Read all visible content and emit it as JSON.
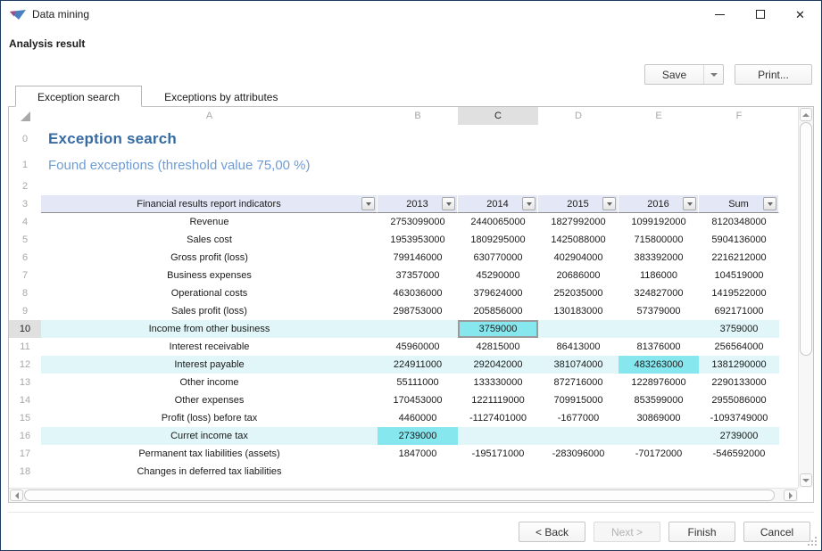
{
  "window": {
    "title": "Data mining"
  },
  "header": {
    "analysis_result": "Analysis result",
    "save_label": "Save",
    "print_label": "Print..."
  },
  "tabs": [
    {
      "label": "Exception search",
      "active": true
    },
    {
      "label": "Exceptions by attributes",
      "active": false
    }
  ],
  "grid": {
    "letters": [
      "A",
      "B",
      "C",
      "D",
      "E",
      "F"
    ],
    "selected_letter": "C",
    "row_numbers": [
      "0",
      "1",
      "2",
      "3"
    ],
    "sheet_title": "Exception search",
    "sheet_subtitle": "Found exceptions (threshold value 75,00 %)"
  },
  "table": {
    "columns": [
      "Financial results report indicators",
      "2013",
      "2014",
      "2015",
      "2016",
      "Sum"
    ],
    "rows": [
      {
        "n": "4",
        "label": "Revenue",
        "values": [
          "2753099000",
          "2440065000",
          "1827992000",
          "1099192000",
          "8120348000"
        ]
      },
      {
        "n": "5",
        "label": "Sales cost",
        "values": [
          "1953953000",
          "1809295000",
          "1425088000",
          "715800000",
          "5904136000"
        ]
      },
      {
        "n": "6",
        "label": "Gross profit (loss)",
        "values": [
          "799146000",
          "630770000",
          "402904000",
          "383392000",
          "2216212000"
        ]
      },
      {
        "n": "7",
        "label": "Business expenses",
        "values": [
          "37357000",
          "45290000",
          "20686000",
          "1186000",
          "104519000"
        ]
      },
      {
        "n": "8",
        "label": "Operational costs",
        "values": [
          "463036000",
          "379624000",
          "252035000",
          "324827000",
          "1419522000"
        ]
      },
      {
        "n": "9",
        "label": "Sales profit (loss)",
        "values": [
          "298753000",
          "205856000",
          "130183000",
          "57379000",
          "692171000"
        ]
      },
      {
        "n": "10",
        "label": "Income from other business",
        "values": [
          "",
          "3759000",
          "",
          "",
          "3759000"
        ],
        "highlight": true,
        "hl_cell": 1,
        "selected": true
      },
      {
        "n": "11",
        "label": "Interest receivable",
        "values": [
          "45960000",
          "42815000",
          "86413000",
          "81376000",
          "256564000"
        ]
      },
      {
        "n": "12",
        "label": "Interest payable",
        "values": [
          "224911000",
          "292042000",
          "381074000",
          "483263000",
          "1381290000"
        ],
        "highlight": true,
        "hl_cell": 3
      },
      {
        "n": "13",
        "label": "Other income",
        "values": [
          "55111000",
          "133330000",
          "872716000",
          "1228976000",
          "2290133000"
        ]
      },
      {
        "n": "14",
        "label": "Other expenses",
        "values": [
          "170453000",
          "1221119000",
          "709915000",
          "853599000",
          "2955086000"
        ]
      },
      {
        "n": "15",
        "label": "Profit (loss) before tax",
        "values": [
          "4460000",
          "-1127401000",
          "-1677000",
          "30869000",
          "-1093749000"
        ]
      },
      {
        "n": "16",
        "label": "Curret income tax",
        "values": [
          "2739000",
          "",
          "",
          "",
          "2739000"
        ],
        "highlight": true,
        "hl_cell": 0
      },
      {
        "n": "17",
        "label": "Permanent tax liabilities (assets)",
        "values": [
          "1847000",
          "-195171000",
          "-283096000",
          "-70172000",
          "-546592000"
        ]
      },
      {
        "n": "18",
        "label": "Changes in deferred tax liabilities",
        "values": [
          "",
          "",
          "",
          "",
          ""
        ]
      }
    ]
  },
  "footer": {
    "back": "< Back",
    "next": "Next >",
    "finish": "Finish",
    "cancel": "Cancel"
  },
  "colors": {
    "title_blue": "#366ba3",
    "subtitle_blue": "#6f9cd4",
    "header_bg": "#e4e8f6",
    "exception_row_bg": "#e0f6f9",
    "exception_cell_bg": "#87e7ee"
  }
}
